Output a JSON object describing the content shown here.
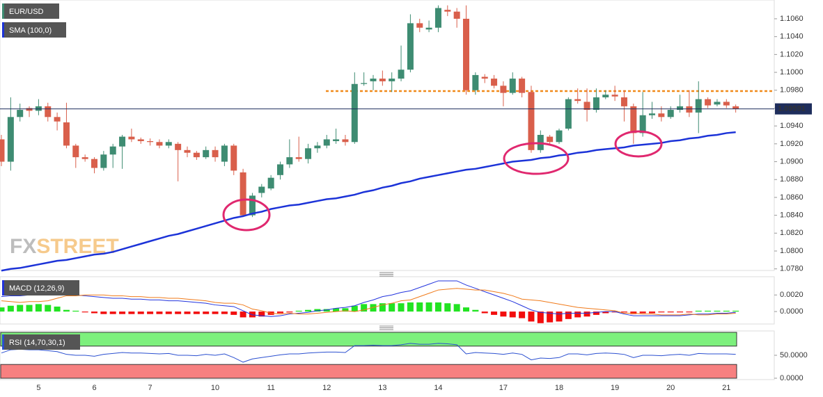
{
  "chart_data": [
    {
      "type": "candlestick",
      "title": "EUR/USD",
      "watermark": [
        "FX",
        "STREET"
      ],
      "categories": [
        null,
        null,
        null,
        null,
        "5",
        null,
        null,
        null,
        null,
        null,
        "6",
        null,
        null,
        null,
        null,
        null,
        "7",
        null,
        null,
        null,
        null,
        null,
        null,
        "10",
        null,
        null,
        null,
        null,
        null,
        "11",
        null,
        null,
        null,
        null,
        null,
        "12",
        null,
        null,
        null,
        null,
        null,
        "13",
        null,
        null,
        null,
        null,
        null,
        "14",
        null,
        null,
        null,
        null,
        null,
        null,
        "17",
        null,
        null,
        null,
        null,
        null,
        "18",
        null,
        null,
        null,
        null,
        null,
        "19",
        null,
        null,
        null,
        null,
        null,
        "20",
        null,
        null,
        null,
        null,
        null,
        "21",
        null
      ],
      "open": [
        1.0925,
        1.09,
        1.095,
        1.096,
        1.0957,
        1.0962,
        1.095,
        1.0944,
        1.0918,
        1.0905,
        1.0903,
        1.0893,
        1.0908,
        1.0917,
        1.0928,
        1.0925,
        1.0923,
        1.0922,
        1.0918,
        1.092,
        1.0913,
        1.091,
        1.0905,
        1.0913,
        1.09,
        1.0918,
        1.0888,
        1.084,
        1.0865,
        1.087,
        1.0885,
        1.0897,
        1.0905,
        1.0903,
        1.0915,
        1.0918,
        1.0923,
        1.0925,
        1.0922,
        1.0987,
        1.099,
        1.0993,
        1.099,
        1.0993,
        1.1003,
        1.1055,
        1.1048,
        1.105,
        1.107,
        1.1068,
        1.106,
        1.098,
        1.0995,
        1.0993,
        1.0985,
        1.0977,
        1.0993,
        1.0978,
        1.0913,
        1.0928,
        1.0922,
        1.0937,
        1.097,
        1.0967,
        1.0958,
        1.0972,
        1.0975,
        1.0972,
        1.0962,
        1.0932,
        1.0952,
        1.0954,
        1.095,
        1.0958,
        1.0962,
        1.0955,
        1.097,
        1.0964,
        1.0967,
        1.0962
      ],
      "high": [
        1.093,
        1.0972,
        1.0965,
        1.0962,
        1.097,
        1.0966,
        1.0955,
        1.0966,
        1.092,
        1.0908,
        1.0905,
        1.0912,
        1.092,
        1.093,
        1.0937,
        1.0927,
        1.0926,
        1.0925,
        1.0925,
        1.0922,
        1.0917,
        1.0912,
        1.0917,
        1.0917,
        1.092,
        1.092,
        1.0892,
        1.0865,
        1.0875,
        1.0885,
        1.09,
        1.0925,
        1.0928,
        1.092,
        1.0922,
        1.093,
        1.0937,
        1.093,
        1.1,
        1.1,
        1.0997,
        1.1002,
        1.1,
        1.103,
        1.1065,
        1.106,
        1.1058,
        1.1075,
        1.1075,
        1.1072,
        1.1075,
        1.1,
        1.0998,
        1.0997,
        1.099,
        1.1,
        1.0995,
        1.0985,
        1.0935,
        1.093,
        1.0937,
        1.0972,
        1.0982,
        1.0982,
        1.0982,
        1.098,
        1.0985,
        1.098,
        1.0965,
        1.0978,
        1.0967,
        1.0962,
        1.0962,
        1.0975,
        1.098,
        1.099,
        1.0972,
        1.097,
        1.097,
        1.0964
      ],
      "low": [
        1.0895,
        1.089,
        1.0945,
        1.095,
        1.0952,
        1.0945,
        1.0935,
        1.0915,
        1.0893,
        1.09,
        1.0887,
        1.089,
        1.0893,
        1.0892,
        1.0922,
        1.092,
        1.0918,
        1.0915,
        1.0915,
        1.0878,
        1.0905,
        1.0902,
        1.0903,
        1.09,
        1.0895,
        1.0885,
        1.0838,
        1.0838,
        1.086,
        1.0868,
        1.088,
        1.0893,
        1.09,
        1.0898,
        1.091,
        1.0915,
        1.092,
        1.0918,
        1.092,
        1.0985,
        1.098,
        1.0985,
        1.0978,
        1.099,
        1.1,
        1.1045,
        1.1045,
        1.1045,
        1.1063,
        1.105,
        1.0975,
        1.0975,
        1.0988,
        1.0982,
        1.0962,
        1.0975,
        1.0972,
        1.091,
        1.091,
        1.0918,
        1.092,
        1.0935,
        1.0965,
        1.0945,
        1.0955,
        1.097,
        1.0968,
        1.0945,
        1.092,
        1.0928,
        1.0948,
        1.0945,
        1.0948,
        1.0955,
        1.095,
        1.0932,
        1.096,
        1.0962,
        1.096,
        1.0955
      ],
      "close": [
        1.09,
        1.095,
        1.0958,
        1.0957,
        1.0962,
        1.095,
        1.0945,
        1.0918,
        1.0905,
        1.0903,
        1.0893,
        1.0908,
        1.0917,
        1.0928,
        1.0925,
        1.0923,
        1.0922,
        1.0918,
        1.0922,
        1.0913,
        1.091,
        1.0905,
        1.0913,
        1.0905,
        1.0918,
        1.089,
        1.084,
        1.0862,
        1.0872,
        1.0882,
        1.0897,
        1.0905,
        1.0903,
        1.0915,
        1.0918,
        1.0925,
        1.0925,
        1.0922,
        1.0987,
        1.0988,
        1.0993,
        1.099,
        1.0993,
        1.1003,
        1.1055,
        1.105,
        1.105,
        1.1072,
        1.1068,
        1.106,
        1.098,
        1.0997,
        1.0993,
        1.0985,
        1.0977,
        1.0993,
        1.0977,
        1.0913,
        1.093,
        1.0922,
        1.0935,
        1.097,
        1.0968,
        1.0958,
        1.0972,
        1.0975,
        1.0973,
        1.0962,
        1.0932,
        1.0952,
        1.0954,
        1.095,
        1.0958,
        1.0962,
        1.0955,
        1.097,
        1.0963,
        1.0967,
        1.0963,
        1.0959
      ],
      "up_color": "#3e8c72",
      "down_color": "#d95f4b",
      "series": [
        {
          "name": "SMA (100,0)",
          "color": "#1c33d8",
          "values": [
            1.0778,
            1.078,
            1.0781,
            1.0783,
            1.0785,
            1.0787,
            1.0789,
            1.079,
            1.0792,
            1.0794,
            1.0796,
            1.0797,
            1.0799,
            1.0802,
            1.0805,
            1.0808,
            1.0811,
            1.0814,
            1.0817,
            1.0819,
            1.0822,
            1.0825,
            1.0828,
            1.0831,
            1.0834,
            1.0837,
            1.0839,
            1.0842,
            1.0844,
            1.0847,
            1.0849,
            1.0851,
            1.0852,
            1.0854,
            1.0856,
            1.0858,
            1.0859,
            1.0861,
            1.0863,
            1.0866,
            1.0868,
            1.0871,
            1.0873,
            1.0876,
            1.0878,
            1.0881,
            1.0883,
            1.0885,
            1.0887,
            1.0889,
            1.0891,
            1.0892,
            1.0894,
            1.0896,
            1.0898,
            1.09,
            1.0901,
            1.0902,
            1.0904,
            1.0905,
            1.0907,
            1.0908,
            1.091,
            1.0911,
            1.0913,
            1.0914,
            1.0915,
            1.0916,
            1.0918,
            1.0919,
            1.092,
            1.0921,
            1.0923,
            1.0924,
            1.0926,
            1.0927,
            1.0929,
            1.093,
            1.0932,
            1.0933
          ]
        }
      ],
      "last_price": {
        "value": 1.09591,
        "label": "1.09591"
      },
      "last_price_color": "#1e2d5c",
      "level_line": 1.0979,
      "level_color": "#f08a1c",
      "ylim": [
        1.0779,
        1.1081
      ],
      "yticks": [
        {
          "value": 1.078,
          "label": "1.0780"
        },
        {
          "value": 1.08,
          "label": "1.0800"
        },
        {
          "value": 1.082,
          "label": "1.0820"
        },
        {
          "value": 1.084,
          "label": "1.0840"
        },
        {
          "value": 1.086,
          "label": "1.0860"
        },
        {
          "value": 1.088,
          "label": "1.0880"
        },
        {
          "value": 1.09,
          "label": "1.0900"
        },
        {
          "value": 1.092,
          "label": "1.0920"
        },
        {
          "value": 1.094,
          "label": "1.0940"
        },
        {
          "value": 1.096,
          "label": "1.0960"
        },
        {
          "value": 1.098,
          "label": "1.0980"
        },
        {
          "value": 1.1,
          "label": "1.1000"
        },
        {
          "value": 1.102,
          "label": "1.1020"
        },
        {
          "value": 1.104,
          "label": "1.1040"
        },
        {
          "value": 1.106,
          "label": "1.1060"
        }
      ]
    },
    {
      "type": "macd",
      "title": "MACD (12,26,9)",
      "histogram": [
        0.0005,
        0.0007,
        0.0008,
        0.0008,
        0.0009,
        0.0008,
        0.0006,
        0.0002,
        0.0001,
        -0.0001,
        -0.0002,
        -0.0003,
        -0.0003,
        -0.0003,
        -0.0003,
        -0.0003,
        -0.0003,
        -0.0003,
        -0.0003,
        -0.0003,
        -0.0003,
        -0.0003,
        -0.0003,
        -0.0003,
        -0.0003,
        -0.0004,
        -0.0007,
        -0.0007,
        -0.0006,
        -0.0004,
        -0.0002,
        -0.0001,
        0.0001,
        0.0002,
        0.0003,
        0.0003,
        0.0004,
        0.0004,
        0.0007,
        0.0009,
        0.0009,
        0.001,
        0.001,
        0.001,
        0.0011,
        0.0011,
        0.0011,
        0.0011,
        0.001,
        0.0009,
        0.0005,
        0.0002,
        -0.0002,
        -0.0004,
        -0.0006,
        -0.0007,
        -0.0008,
        -0.0012,
        -0.0014,
        -0.0013,
        -0.0012,
        -0.0009,
        -0.0007,
        -0.0006,
        -0.0004,
        -0.0002,
        -0.0001,
        -0.0001,
        -0.0003,
        -0.0002,
        -0.0002,
        -0.0001,
        -0.0001,
        -0.0001,
        -0.0001,
        0.0001,
        0.0001,
        0.0001,
        0.0001,
        0.0001
      ],
      "up_color": "#22e322",
      "down_color": "#f20d0d",
      "series": [
        {
          "color": "#2233dd",
          "values": [
            0.0018,
            0.0019,
            0.0019,
            0.002,
            0.0021,
            0.0021,
            0.0022,
            0.0021,
            0.002,
            0.0019,
            0.0018,
            0.0017,
            0.0016,
            0.0016,
            0.0015,
            0.0015,
            0.0014,
            0.0014,
            0.0013,
            0.0013,
            0.0012,
            0.0011,
            0.001,
            0.0008,
            0.0007,
            0.0006,
            0.0001,
            -0.0004,
            -0.0005,
            -0.0006,
            -0.0005,
            -0.0003,
            -0.0002,
            -0.0001,
            0.0001,
            0.0002,
            0.0004,
            0.0005,
            0.0007,
            0.0011,
            0.0014,
            0.0018,
            0.002,
            0.0023,
            0.0025,
            0.0029,
            0.0033,
            0.0037,
            0.0037,
            0.0037,
            0.0032,
            0.0028,
            0.0024,
            0.002,
            0.0016,
            0.0012,
            0.0007,
            0.0002,
            -0.0001,
            -0.0002,
            -0.0003,
            -0.0002,
            -0.0002,
            -0.0002,
            -0.0001,
            0.0,
            0.0,
            -0.0003,
            -0.0005,
            -0.0005,
            -0.0005,
            -0.0005,
            -0.0005,
            -0.0005,
            -0.0004,
            -0.0003,
            -0.0003,
            -0.0002,
            -0.0002,
            -0.0001
          ]
        },
        {
          "color": "#f07a1a",
          "values": [
            0.0013,
            0.0012,
            0.0011,
            0.0012,
            0.0012,
            0.0013,
            0.0016,
            0.0019,
            0.0019,
            0.002,
            0.002,
            0.002,
            0.0019,
            0.0019,
            0.0018,
            0.0018,
            0.0017,
            0.0017,
            0.0016,
            0.0016,
            0.0015,
            0.0014,
            0.0013,
            0.0011,
            0.001,
            0.001,
            0.0008,
            0.0003,
            0.0001,
            -0.0002,
            -0.0003,
            -0.0002,
            -0.0003,
            -0.0003,
            -0.0002,
            -0.0001,
            0.0,
            0.0001,
            0.0,
            0.0002,
            0.0005,
            0.0008,
            0.001,
            0.0013,
            0.0014,
            0.0018,
            0.0022,
            0.0026,
            0.0027,
            0.0028,
            0.0027,
            0.0026,
            0.0026,
            0.0024,
            0.0022,
            0.0019,
            0.0015,
            0.0014,
            0.0013,
            0.0011,
            0.0009,
            0.0007,
            0.0005,
            0.0004,
            0.0003,
            0.0002,
            0.0001,
            -0.0002,
            -0.0002,
            -0.0003,
            -0.0003,
            -0.0004,
            -0.0004,
            -0.0004,
            -0.0003,
            -0.0004,
            -0.0004,
            -0.0003,
            -0.0003,
            -0.0002
          ]
        }
      ],
      "ylim": [
        -0.0015,
        0.0042
      ],
      "yticks": [
        {
          "value": 0,
          "label": "0.0000"
        },
        {
          "value": 0.002,
          "label": "0.0020"
        }
      ]
    },
    {
      "type": "rsi",
      "title": "RSI (14,70,30,1)",
      "color": "#2a4fd0",
      "values": [
        55,
        62,
        63,
        62,
        62,
        60,
        58,
        52,
        50,
        50,
        48,
        52,
        54,
        56,
        55,
        55,
        54,
        53,
        54,
        50,
        50,
        49,
        52,
        50,
        53,
        45,
        35,
        42,
        45,
        48,
        51,
        53,
        53,
        55,
        56,
        57,
        57,
        56,
        71,
        71,
        72,
        71,
        71,
        73,
        76,
        74,
        74,
        76,
        75,
        73,
        53,
        56,
        55,
        54,
        52,
        55,
        52,
        40,
        44,
        43,
        45,
        53,
        53,
        51,
        54,
        55,
        54,
        52,
        45,
        50,
        50,
        49,
        51,
        52,
        50,
        54,
        53,
        53,
        53,
        52
      ],
      "overbought": 70,
      "oversold": 30,
      "overbought_color": "#7df07d",
      "oversold_color": "#f78080",
      "ylim": [
        0,
        100
      ],
      "yticks": [
        {
          "value": 0,
          "label": "0.0000"
        },
        {
          "value": 50,
          "label": "50.0000"
        }
      ]
    }
  ]
}
